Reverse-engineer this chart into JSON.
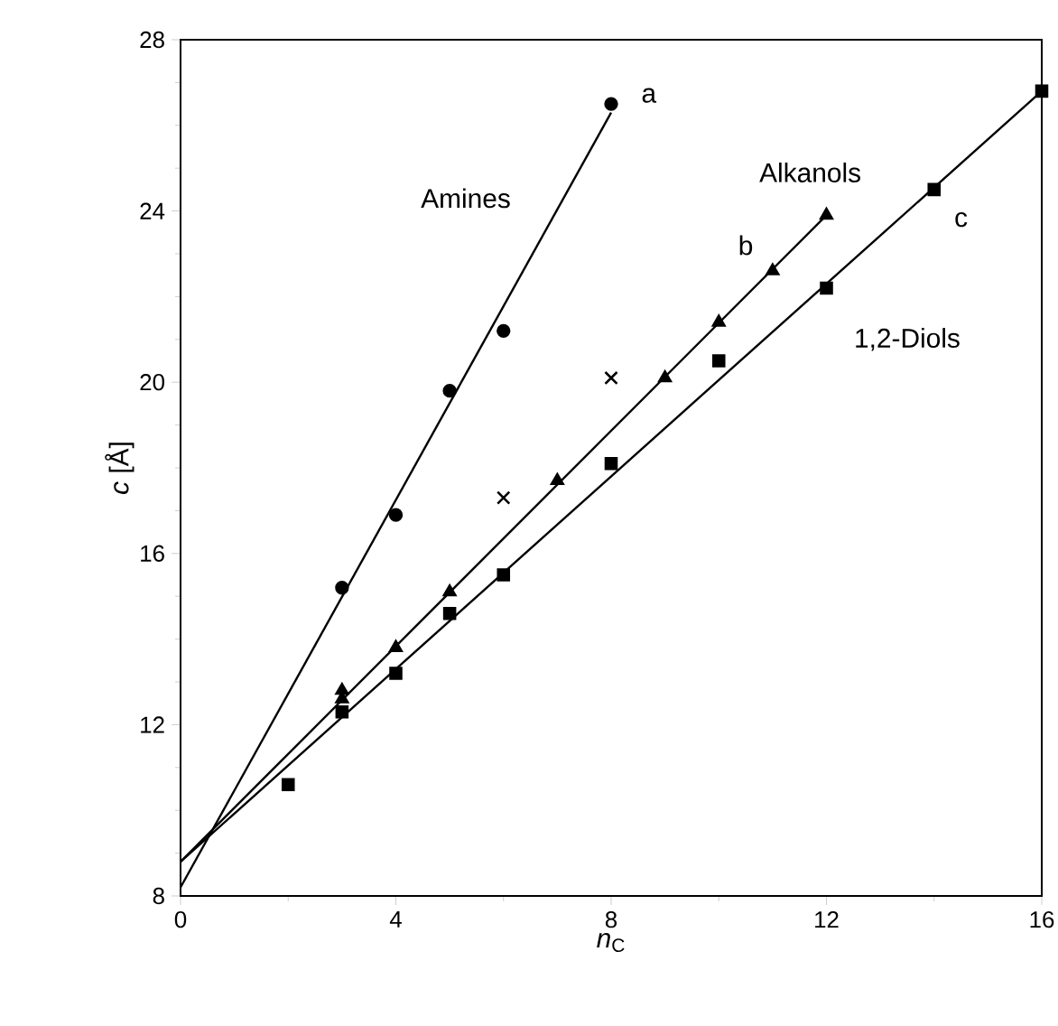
{
  "chart_data": {
    "type": "scatter",
    "xlabel": "*n*$_{C}$",
    "ylabel": "*c* [Å]",
    "xlim": [
      0,
      16
    ],
    "ylim": [
      8,
      28
    ],
    "xticks": [
      0,
      4,
      8,
      12,
      16
    ],
    "yticks": [
      8,
      12,
      16,
      20,
      24,
      28
    ],
    "grid": false,
    "series": [
      {
        "marker": "circle",
        "color": "#000000",
        "x": [
          3,
          4,
          5,
          6,
          8
        ],
        "values": [
          15.2,
          16.9,
          19.8,
          21.2,
          26.5
        ]
      },
      {
        "marker": "triangle",
        "color": "#000000",
        "x": [
          3,
          3,
          4,
          5,
          7,
          9,
          10,
          11,
          12
        ],
        "values": [
          12.6,
          12.8,
          13.8,
          15.1,
          17.7,
          20.1,
          21.4,
          22.6,
          23.9
        ]
      },
      {
        "marker": "square",
        "color": "#000000",
        "x": [
          2,
          3,
          4,
          5,
          6,
          8,
          10,
          12,
          14,
          16
        ],
        "values": [
          10.6,
          12.3,
          13.2,
          14.6,
          15.5,
          18.1,
          20.5,
          22.2,
          24.5,
          26.8
        ]
      },
      {
        "marker": "cross",
        "color": "#000000",
        "x": [
          6,
          8
        ],
        "values": [
          17.3,
          20.1
        ]
      },
      {
        "type": "line",
        "marker": "none",
        "line_style": "solid",
        "color": "#000000",
        "x": [
          0,
          8
        ],
        "values": [
          8.2,
          26.3
        ]
      },
      {
        "type": "line",
        "marker": "none",
        "line_style": "solid",
        "color": "#000000",
        "x": [
          0,
          12
        ],
        "values": [
          8.8,
          23.9
        ]
      },
      {
        "type": "line",
        "marker": "none",
        "line_style": "solid",
        "color": "#000000",
        "x": [
          0,
          16
        ],
        "values": [
          8.8,
          26.8
        ]
      }
    ],
    "annotations": [
      "a",
      "Amines",
      "Alkanols",
      "b",
      "c",
      "1,2-Diols"
    ]
  }
}
